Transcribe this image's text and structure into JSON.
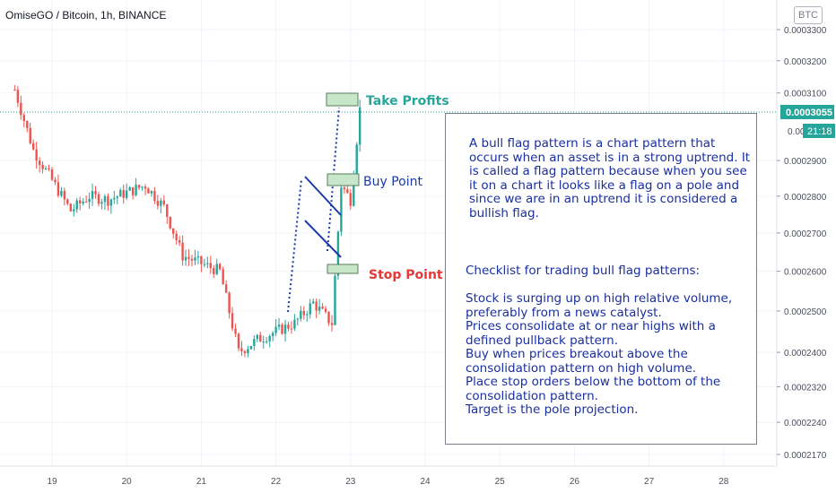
{
  "title": "OmiseGO / Bitcoin, 1h, BINANCE",
  "currency_badge": "BTC",
  "price_tag": "0.0003055",
  "countdown": "21:18",
  "annotations": {
    "take_profits": "Take Profits",
    "buy_point": "Buy Point",
    "stop_point": "Stop Point"
  },
  "note": {
    "paragraph1": "A bull flag pattern is a chart pattern that occurs when an asset is in a strong uptrend. It is called a flag pattern because when you see it on a chart it looks like a flag on a pole and since we are in an uptrend it is considered a bullish flag.",
    "paragraph2": "Checklist for trading bull flag patterns:\n\nStock is surging up on high relative volume,\npreferably from a news catalyst.\nPrices consolidate at or near highs with a\ndefined pullback pattern.\nBuy when prices breakout above the\nconsolidation pattern on high volume.\nPlace stop orders below the bottom of the\nconsolidation pattern.\nTarget is the pole projection."
  },
  "colors": {
    "up": "#26a69a",
    "down": "#ef5350",
    "annotation_blue": "#1a3aa8",
    "take_profit_green": "#26a69a",
    "stop_red": "#e53935",
    "price_tag_bg": "#26a69a"
  },
  "chart_data": {
    "type": "candlestick",
    "symbol": "OmiseGO / Bitcoin",
    "interval": "1h",
    "exchange": "BINANCE",
    "x_ticks": [
      "19",
      "20",
      "21",
      "22",
      "23",
      "24",
      "25",
      "26",
      "27",
      "28"
    ],
    "y_ticks": [
      "0.0003300",
      "0.0003200",
      "0.0003100",
      "0.0002900",
      "0.0002800",
      "0.0002700",
      "0.0002600",
      "0.0002500",
      "0.0002400",
      "0.0002320",
      "0.0002240",
      "0.0002170"
    ],
    "y_scale": "log",
    "last_price": 0.0003055,
    "trend_path": [
      {
        "x": "Day 18 12:00",
        "y": 0.000311
      },
      {
        "x": "Day 18 18:00",
        "y": 0.000293
      },
      {
        "x": "Day 19 06:00",
        "y": 0.000276
      },
      {
        "x": "Day 19 12:00",
        "y": 0.00028
      },
      {
        "x": "Day 19 18:00",
        "y": 0.000279
      },
      {
        "x": "Day 20 06:00",
        "y": 0.000283
      },
      {
        "x": "Day 20 12:00",
        "y": 0.000277
      },
      {
        "x": "Day 20 18:00",
        "y": 0.000264
      },
      {
        "x": "Day 21 06:00",
        "y": 0.00026
      },
      {
        "x": "Day 21 12:00",
        "y": 0.00024
      },
      {
        "x": "Day 21 18:00",
        "y": 0.000243
      },
      {
        "x": "Day 22 06:00",
        "y": 0.000247
      },
      {
        "x": "Day 22 12:00",
        "y": 0.000252
      },
      {
        "x": "Day 22 18:00",
        "y": 0.000247
      },
      {
        "x": "Day 22 21:00",
        "y": 0.000283
      },
      {
        "x": "Day 23 00:00",
        "y": 0.000279
      },
      {
        "x": "Day 23 03:00",
        "y": 0.000305
      }
    ]
  }
}
